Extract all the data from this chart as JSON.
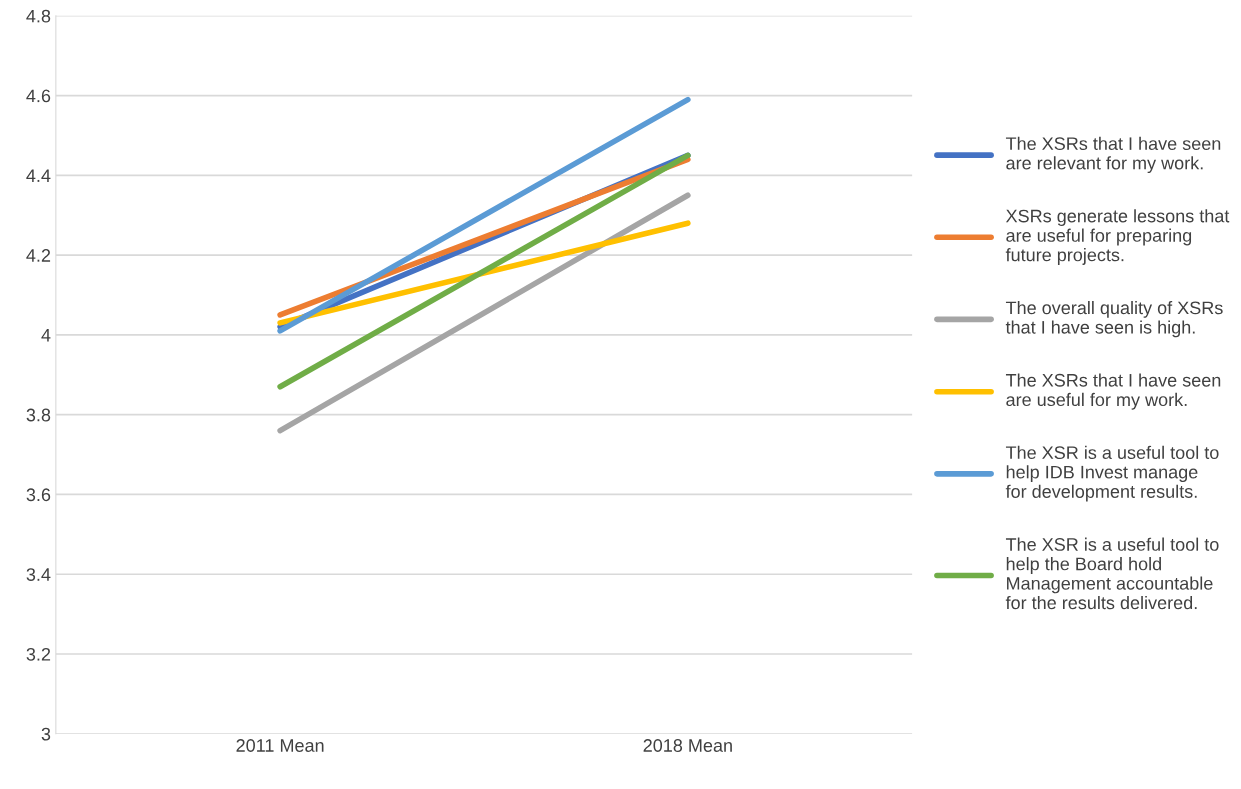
{
  "chart_data": {
    "type": "line",
    "categories": [
      "2011 Mean",
      "2018 Mean"
    ],
    "series": [
      {
        "name": "The XSRs that I have seen\nare relevant for my work.",
        "color": "#4472c4",
        "values": [
          4.02,
          4.45
        ]
      },
      {
        "name": "XSRs generate lessons that\nare useful for preparing\nfuture projects.",
        "color": "#ed7d31",
        "values": [
          4.05,
          4.44
        ]
      },
      {
        "name": "The overall quality of XSRs\nthat I have seen is high.",
        "color": "#a5a5a5",
        "values": [
          3.76,
          4.35
        ]
      },
      {
        "name": "The XSRs that I have seen\nare useful for my work.",
        "color": "#ffc000",
        "values": [
          4.03,
          4.28
        ]
      },
      {
        "name": "The XSR is a useful tool to\nhelp IDB Invest manage\nfor development results.",
        "color": "#5b9bd5",
        "values": [
          4.01,
          4.59
        ]
      },
      {
        "name": "The XSR is a useful tool to\nhelp the Board hold\nManagement accountable\nfor the results delivered.",
        "color": "#70ad47",
        "values": [
          3.87,
          4.45
        ]
      }
    ],
    "ylim": [
      3,
      4.8
    ],
    "yticks": [
      3,
      3.2,
      3.4,
      3.6,
      3.8,
      4,
      4.2,
      4.4,
      4.6,
      4.8
    ],
    "grid": "y",
    "legend": "right",
    "marker": "none",
    "line_style": "solid"
  }
}
